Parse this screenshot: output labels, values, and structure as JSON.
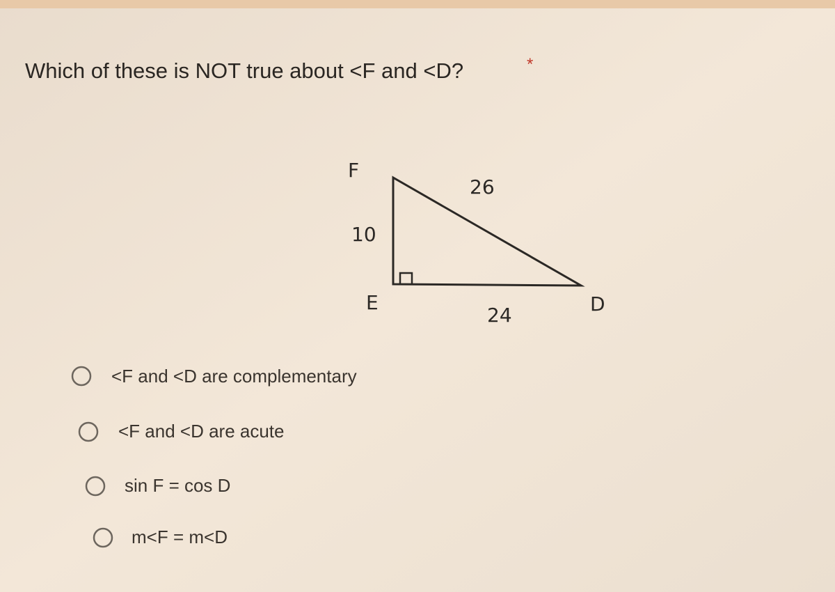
{
  "question": {
    "text": "Which of these is NOT true about <F and <D?",
    "required_mark": "*"
  },
  "diagram": {
    "vertices": [
      "F",
      "E",
      "D"
    ],
    "sides": {
      "FE": 10,
      "FD": 26,
      "ED": 24
    }
  },
  "options": [
    "<F and <D are complementary",
    "<F and <D are acute",
    "sin F = cos D",
    "m<F = m<D"
  ]
}
